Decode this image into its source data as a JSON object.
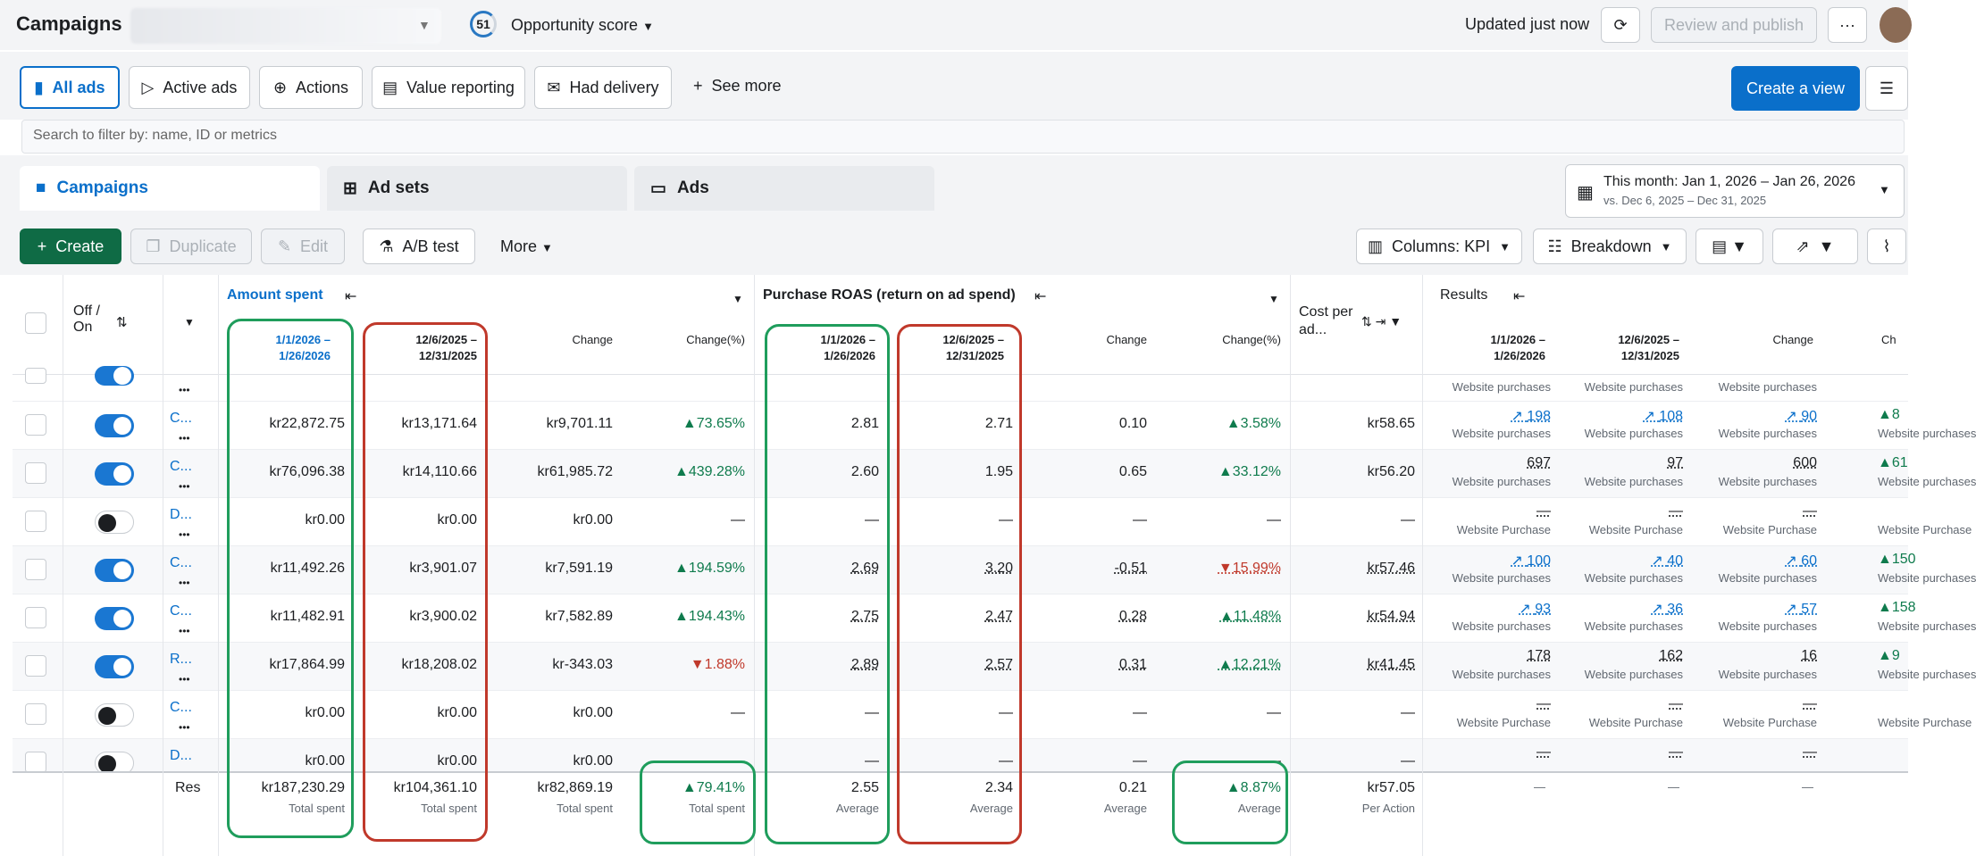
{
  "header": {
    "title": "Campaigns",
    "opportunity_score": "51",
    "opportunity_label": "Opportunity score",
    "updated": "Updated just now",
    "review_publish": "Review and publish",
    "more": "···"
  },
  "views": {
    "items": [
      "All ads",
      "Active ads",
      "Actions",
      "Value reporting",
      "Had delivery"
    ],
    "see_more": "See more",
    "create_view": "Create a view"
  },
  "search": {
    "placeholder": "Search to filter by: name, ID or metrics"
  },
  "tabs": {
    "campaigns": "Campaigns",
    "adsets": "Ad sets",
    "ads": "Ads"
  },
  "date_range": {
    "main": "This month: Jan 1, 2026 – Jan 26, 2026",
    "compare": "vs. Dec 6, 2025 – Dec 31, 2025"
  },
  "toolbar": {
    "create": "Create",
    "duplicate": "Duplicate",
    "edit": "Edit",
    "ab_test": "A/B test",
    "more": "More",
    "columns": "Columns: KPI",
    "breakdown": "Breakdown"
  },
  "table": {
    "off_on": "Off / On",
    "amount_spent": "Amount spent",
    "purchase_roas": "Purchase ROAS (return on ad spend)",
    "cost_per": "Cost per ad...",
    "results": "Results",
    "period1": "1/1/2026 – 1/26/2026",
    "period2": "12/6/2025 – 12/31/2025",
    "change": "Change",
    "change_pct": "Change(%)",
    "change_short": "Ch",
    "rows": [
      {
        "toggle": "on",
        "name": "C...",
        "spent1": "kr22,872.75",
        "spent2": "kr13,171.64",
        "spentch": "kr9,701.11",
        "spentpct": "73.65%",
        "spentdir": "up",
        "roas1": "2.81",
        "roas2": "2.71",
        "roasch": "0.10",
        "roaspct": "3.58%",
        "roasdir": "up",
        "cost": "kr58.65",
        "res1": "198",
        "res2": "108",
        "resch": "90",
        "resch2": "8",
        "reslabel": "Website purchases"
      },
      {
        "toggle": "on",
        "name": "C...",
        "spent1": "kr76,096.38",
        "spent2": "kr14,110.66",
        "spentch": "kr61,985.72",
        "spentpct": "439.28%",
        "spentdir": "up",
        "roas1": "2.60",
        "roas2": "1.95",
        "roasch": "0.65",
        "roaspct": "33.12%",
        "roasdir": "up",
        "cost": "kr56.20",
        "res1": "697",
        "res2": "97",
        "resch": "600",
        "resch2": "61",
        "reslabel": "Website purchases"
      },
      {
        "toggle": "off",
        "name": "D...",
        "spent1": "kr0.00",
        "spent2": "kr0.00",
        "spentch": "kr0.00",
        "spentpct": "—",
        "spentdir": "",
        "roas1": "—",
        "roas2": "—",
        "roasch": "—",
        "roaspct": "—",
        "roasdir": "",
        "cost": "—",
        "res1": "—",
        "res2": "—",
        "resch": "—",
        "resch2": "",
        "reslabel": "Website Purchase"
      },
      {
        "toggle": "on",
        "name": "C...",
        "spent1": "kr11,492.26",
        "spent2": "kr3,901.07",
        "spentch": "kr7,591.19",
        "spentpct": "194.59%",
        "spentdir": "up",
        "roas1": "2.69",
        "roas2": "3.20",
        "roasch": "-0.51",
        "roaspct": "15.99%",
        "roasdir": "dn",
        "cost": "kr57.46",
        "res1": "100",
        "res2": "40",
        "resch": "60",
        "resch2": "150",
        "reslabel": "Website purchases"
      },
      {
        "toggle": "on",
        "name": "C...",
        "spent1": "kr11,482.91",
        "spent2": "kr3,900.02",
        "spentch": "kr7,582.89",
        "spentpct": "194.43%",
        "spentdir": "up",
        "roas1": "2.75",
        "roas2": "2.47",
        "roasch": "0.28",
        "roaspct": "11.48%",
        "roasdir": "up",
        "cost": "kr54.94",
        "res1": "93",
        "res2": "36",
        "resch": "57",
        "resch2": "158",
        "reslabel": "Website purchases"
      },
      {
        "toggle": "on",
        "name": "R...",
        "spent1": "kr17,864.99",
        "spent2": "kr18,208.02",
        "spentch": "kr-343.03",
        "spentpct": "1.88%",
        "spentdir": "dn",
        "roas1": "2.89",
        "roas2": "2.57",
        "roasch": "0.31",
        "roaspct": "12.21%",
        "roasdir": "up",
        "cost": "kr41.45",
        "res1": "178",
        "res2": "162",
        "resch": "16",
        "resch2": "9",
        "reslabel": "Website purchases"
      },
      {
        "toggle": "off",
        "name": "C...",
        "spent1": "kr0.00",
        "spent2": "kr0.00",
        "spentch": "kr0.00",
        "spentpct": "—",
        "spentdir": "",
        "roas1": "—",
        "roas2": "—",
        "roasch": "—",
        "roaspct": "—",
        "roasdir": "",
        "cost": "—",
        "res1": "—",
        "res2": "—",
        "resch": "—",
        "resch2": "",
        "reslabel": "Website Purchase"
      },
      {
        "toggle": "off",
        "name": "D...",
        "spent1": "kr0.00",
        "spent2": "kr0.00",
        "spentch": "kr0.00",
        "spentpct": "—",
        "spentdir": "",
        "roas1": "—",
        "roas2": "—",
        "roasch": "—",
        "roaspct": "—",
        "roasdir": "",
        "cost": "—",
        "res1": "—",
        "res2": "—",
        "resch": "—",
        "resch2": "",
        "reslabel": ""
      }
    ],
    "top_partial": "Website purchases",
    "totals": {
      "label": "Res",
      "spent1": "kr187,230.29",
      "spent2": "kr104,361.10",
      "spentch": "kr82,869.19",
      "spentpct": "79.41%",
      "spent_sub": "Total spent",
      "roas1": "2.55",
      "roas2": "2.34",
      "roasch": "0.21",
      "roaspct": "8.87%",
      "roas_sub": "Average",
      "cost": "kr57.05",
      "cost_sub": "Per Action",
      "dash": "—"
    }
  }
}
